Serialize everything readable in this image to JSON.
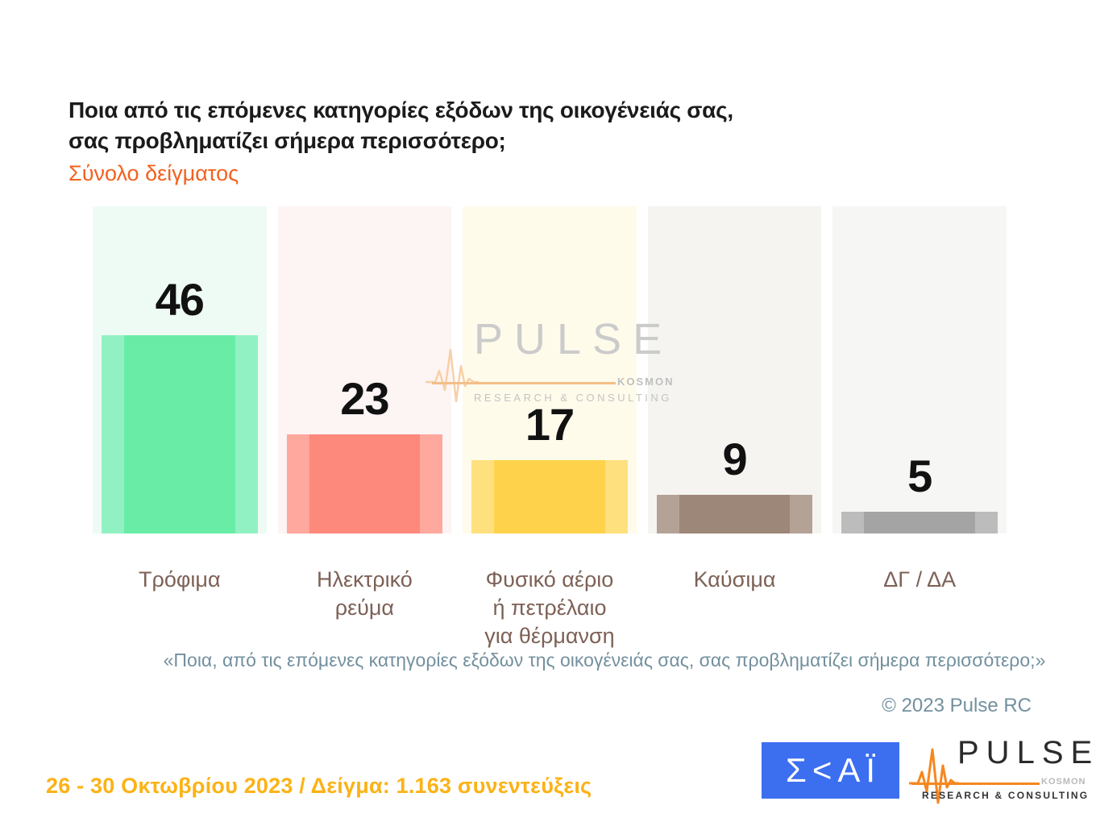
{
  "header": {
    "title_line1": "Ποια από τις επόμενες κατηγορίες εξόδων της οικογένειάς σας,",
    "title_line2": "σας προβληματίζει σήμερα περισσότερο;",
    "subtitle": "Σύνολο δείγματος"
  },
  "chart_data": {
    "type": "bar",
    "title": "Ποια από τις επόμενες κατηγορίες εξόδων της οικογένειάς σας, σας προβληματίζει σήμερα περισσότερο;",
    "subtitle": "Σύνολο δείγματος",
    "categories": [
      "Τρόφιμα",
      "Ηλεκτρικό\nρεύμα",
      "Φυσικό αέριο\nή πετρέλαιο\nγια θέρμανση",
      "Καύσιμα",
      "ΔΓ / ΔΑ"
    ],
    "values": [
      46,
      23,
      17,
      9,
      5
    ],
    "unit": "percent of respondents",
    "ylim": [
      0,
      76
    ],
    "grid": false,
    "legend": false,
    "value_label_position": "above-bar",
    "bar_colors": [
      "#68eca6",
      "#fc897c",
      "#fed34b",
      "#9d8779",
      "#a4a4a4"
    ],
    "bar_edge_colors": [
      "#92f1c3",
      "#ffa89d",
      "#ffe07f",
      "#b4a296",
      "#bcbcbc"
    ],
    "column_bg_colors": [
      "#eefbf4",
      "#fdf4f4",
      "#fffbeb",
      "#f6f4f1",
      "#f6f6f4"
    ]
  },
  "watermark": {
    "word": "PULSE",
    "kosmon": "KOSMON",
    "subtext": "RESEARCH & CONSULTING"
  },
  "footer": {
    "quote": "«Ποια, από τις επόμενες κατηγορίες εξόδων της οικογένειάς σας, σας προβληματίζει σήμερα περισσότερο;»",
    "copyright": "© 2023 Pulse RC",
    "survey_info": "26 - 30 Οκτωβρίου 2023 / Δείγμα: 1.163 συνεντεύξεις"
  },
  "logos": {
    "skai_text": "Σ<ΑΪ",
    "pulse_word": "PULSE",
    "pulse_kosmon": "KOSMON",
    "pulse_subtext": "RESEARCH & CONSULTING"
  },
  "colors": {
    "subtitle_orange": "#f4611e",
    "category_label_brown": "#7d6156",
    "footer_gray_blue": "#73909e",
    "survey_amber": "#fcb216",
    "skai_blue": "#3c6ef0",
    "pulse_orange": "#f6871f"
  }
}
